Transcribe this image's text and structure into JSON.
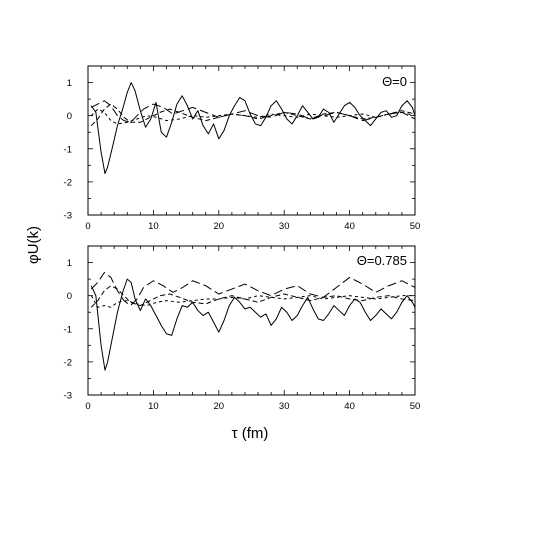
{
  "chart_data": [
    {
      "type": "line",
      "panel_label": "Θ=0",
      "x_tick_labels": [
        "0",
        "10",
        "20",
        "30",
        "40",
        "50"
      ],
      "y_tick_labels": [
        "1",
        "0",
        "-1",
        "-2",
        "-3"
      ],
      "xlim": [
        0,
        50
      ],
      "ylim": [
        -3,
        1.5
      ],
      "grid": false,
      "series": [
        {
          "dash": "solid",
          "x": [
            0.5,
            1.2,
            2,
            2.6,
            3,
            3.8,
            4.5,
            5.3,
            6,
            6.6,
            7.2,
            8,
            8.8,
            9.6,
            10.4,
            11.2,
            12,
            12.8,
            13.6,
            14.4,
            15.2,
            16,
            16.8,
            17.6,
            18.4,
            19.2,
            20,
            20.8,
            21.6,
            22.4,
            23.2,
            24,
            24.8,
            25.6,
            26.4,
            27.2,
            28,
            28.8,
            29.6,
            30.4,
            31.2,
            32,
            32.8,
            33.6,
            34.4,
            35.2,
            36,
            36.8,
            37.6,
            38.4,
            39.2,
            40,
            40.8,
            41.6,
            42.4,
            43.2,
            44,
            44.8,
            45.6,
            46.4,
            47.2,
            48,
            48.8,
            49.6,
            50
          ],
          "y": [
            0.3,
            0.1,
            -1.1,
            -1.75,
            -1.55,
            -0.9,
            -0.3,
            0.2,
            0.7,
            1.0,
            0.75,
            0.15,
            -0.35,
            -0.1,
            0.4,
            -0.5,
            -0.65,
            -0.2,
            0.35,
            0.6,
            0.3,
            -0.1,
            0.15,
            -0.3,
            -0.55,
            -0.25,
            -0.7,
            -0.45,
            0.0,
            0.3,
            0.55,
            0.45,
            0.05,
            -0.25,
            -0.3,
            -0.05,
            0.3,
            0.45,
            0.2,
            -0.1,
            -0.25,
            0.0,
            0.3,
            0.1,
            -0.1,
            -0.05,
            0.2,
            0.1,
            -0.2,
            0.05,
            0.3,
            0.4,
            0.25,
            0.0,
            -0.15,
            -0.3,
            -0.1,
            0.1,
            0.15,
            -0.05,
            0.0,
            0.3,
            0.45,
            0.25,
            0.0
          ]
        },
        {
          "dash": "long",
          "x": [
            0.5,
            1.5,
            2.5,
            3.5,
            4.5,
            5.5,
            6.5,
            7.5,
            8.5,
            10,
            11.5,
            13,
            14.5,
            16,
            18,
            20,
            22,
            24,
            26,
            28,
            30,
            32,
            34,
            36,
            38,
            40,
            42,
            44,
            46,
            48,
            50
          ],
          "y": [
            0.25,
            0.35,
            0.45,
            0.3,
            0.0,
            -0.15,
            -0.2,
            0.0,
            0.2,
            0.35,
            0.25,
            0.05,
            0.15,
            0.25,
            0.1,
            -0.05,
            0.05,
            0.15,
            0.0,
            -0.05,
            0.1,
            0.05,
            -0.1,
            0.0,
            0.1,
            0.0,
            -0.15,
            -0.05,
            0.05,
            0.1,
            -0.1
          ]
        },
        {
          "dash": "medium",
          "x": [
            0.5,
            1.5,
            2.5,
            3.5,
            4.5,
            5.5,
            6.5,
            8,
            9.5,
            11,
            12.5,
            14,
            16,
            18,
            20,
            22,
            24,
            26,
            28,
            30,
            32,
            34,
            36,
            38,
            40,
            42,
            44,
            46,
            48,
            50
          ],
          "y": [
            -0.3,
            -0.1,
            0.2,
            0.35,
            0.2,
            -0.05,
            -0.2,
            -0.2,
            -0.05,
            0.1,
            0.2,
            0.1,
            -0.05,
            -0.15,
            -0.05,
            0.05,
            0.0,
            -0.1,
            0.0,
            0.1,
            0.0,
            -0.1,
            0.05,
            0.1,
            0.0,
            -0.1,
            -0.05,
            0.05,
            0.15,
            0.05
          ]
        },
        {
          "dash": "short",
          "x": [
            0.5,
            1.5,
            2.5,
            3.5,
            4.5,
            6,
            7.5,
            9,
            10.5,
            12,
            14,
            16,
            18,
            20,
            22,
            24,
            26,
            28,
            30,
            32,
            34,
            36,
            38,
            40,
            42,
            44,
            46,
            48,
            50
          ],
          "y": [
            0.0,
            0.2,
            0.1,
            -0.15,
            -0.25,
            -0.2,
            -0.1,
            0.0,
            -0.05,
            -0.15,
            -0.1,
            0.0,
            -0.05,
            0.0,
            0.05,
            0.0,
            -0.05,
            0.05,
            0.0,
            -0.05,
            0.05,
            0.0,
            -0.05,
            0.0,
            0.05,
            -0.05,
            0.05,
            0.1,
            0.0
          ]
        }
      ]
    },
    {
      "type": "line",
      "panel_label": "Θ=0.785",
      "x_tick_labels": [
        "0",
        "10",
        "20",
        "30",
        "40",
        "50"
      ],
      "y_tick_labels": [
        "1",
        "0",
        "-1",
        "-2",
        "-3"
      ],
      "xlim": [
        0,
        50
      ],
      "ylim": [
        -3,
        1.5
      ],
      "grid": false,
      "xlabel": "τ (fm)",
      "series": [
        {
          "dash": "solid",
          "x": [
            0.5,
            1.2,
            2,
            2.6,
            3,
            3.8,
            4.5,
            5.3,
            6,
            6.6,
            7.2,
            8,
            8.8,
            9.6,
            10.4,
            11.2,
            12,
            12.8,
            13.6,
            14.4,
            15.2,
            16,
            16.8,
            17.6,
            18.4,
            19.2,
            20,
            20.8,
            21.6,
            22.4,
            23.2,
            24,
            24.8,
            25.6,
            26.4,
            27.2,
            28,
            28.8,
            29.6,
            30.4,
            31.2,
            32,
            32.8,
            33.6,
            34.4,
            35.2,
            36,
            36.8,
            37.6,
            38.4,
            39.2,
            40,
            40.8,
            41.6,
            42.4,
            43.2,
            44,
            44.8,
            45.6,
            46.4,
            47.2,
            48,
            48.8,
            49.6,
            50
          ],
          "y": [
            0.3,
            0.0,
            -1.5,
            -2.25,
            -2.0,
            -1.2,
            -0.5,
            0.1,
            0.5,
            0.4,
            -0.1,
            -0.45,
            -0.1,
            -0.3,
            -0.6,
            -0.9,
            -1.15,
            -1.2,
            -0.7,
            -0.3,
            -0.35,
            -0.2,
            -0.45,
            -0.6,
            -0.5,
            -0.8,
            -1.1,
            -0.75,
            -0.3,
            -0.05,
            -0.2,
            -0.4,
            -0.35,
            -0.5,
            -0.65,
            -0.55,
            -0.9,
            -0.7,
            -0.35,
            -0.5,
            -0.75,
            -0.6,
            -0.3,
            -0.05,
            -0.4,
            -0.7,
            -0.75,
            -0.55,
            -0.3,
            -0.45,
            -0.6,
            -0.3,
            -0.1,
            -0.2,
            -0.5,
            -0.75,
            -0.6,
            -0.4,
            -0.55,
            -0.7,
            -0.5,
            -0.2,
            0.0,
            -0.2,
            -0.35
          ]
        },
        {
          "dash": "long",
          "x": [
            0.5,
            1.5,
            2.5,
            3.5,
            4.5,
            5.5,
            6.5,
            7.5,
            8.5,
            10,
            11.5,
            13,
            14.5,
            16,
            18,
            20,
            22,
            24,
            26,
            28,
            30,
            32,
            34,
            36,
            38,
            40,
            42,
            44,
            46,
            48,
            50
          ],
          "y": [
            0.2,
            0.4,
            0.7,
            0.55,
            0.15,
            -0.15,
            -0.3,
            -0.1,
            0.25,
            0.45,
            0.3,
            0.1,
            0.25,
            0.45,
            0.3,
            0.05,
            0.2,
            0.35,
            0.15,
            0.0,
            0.2,
            0.3,
            0.05,
            -0.05,
            0.25,
            0.55,
            0.35,
            0.1,
            0.3,
            0.45,
            0.25
          ]
        },
        {
          "dash": "medium",
          "x": [
            0.5,
            1.5,
            2.5,
            3.5,
            4.5,
            5.5,
            6.5,
            8,
            9.5,
            11,
            12.5,
            14,
            16,
            18,
            20,
            22,
            24,
            26,
            28,
            30,
            32,
            34,
            36,
            38,
            40,
            42,
            44,
            46,
            48,
            50
          ],
          "y": [
            -0.35,
            -0.15,
            0.15,
            0.3,
            0.2,
            0.0,
            -0.2,
            -0.3,
            -0.15,
            0.0,
            0.05,
            -0.05,
            -0.2,
            -0.25,
            -0.1,
            0.0,
            -0.1,
            -0.2,
            -0.05,
            0.05,
            -0.05,
            -0.15,
            -0.05,
            0.0,
            -0.1,
            -0.15,
            -0.05,
            0.0,
            -0.1,
            -0.15
          ]
        },
        {
          "dash": "short",
          "x": [
            0.5,
            1.5,
            2.5,
            3.5,
            4.5,
            6,
            7.5,
            9,
            10.5,
            12,
            14,
            16,
            18,
            20,
            22,
            24,
            26,
            28,
            30,
            32,
            34,
            36,
            38,
            40,
            42,
            44,
            46,
            48,
            50
          ],
          "y": [
            0.0,
            -0.35,
            -0.3,
            -0.35,
            -0.2,
            -0.15,
            -0.25,
            -0.3,
            -0.2,
            -0.15,
            -0.2,
            -0.15,
            -0.1,
            -0.1,
            -0.05,
            -0.1,
            0.0,
            -0.05,
            -0.1,
            -0.05,
            0.0,
            -0.1,
            -0.05,
            0.0,
            -0.05,
            -0.1,
            -0.05,
            0.0,
            0.0
          ]
        }
      ]
    }
  ],
  "shared_ylabel": "φU(k)"
}
